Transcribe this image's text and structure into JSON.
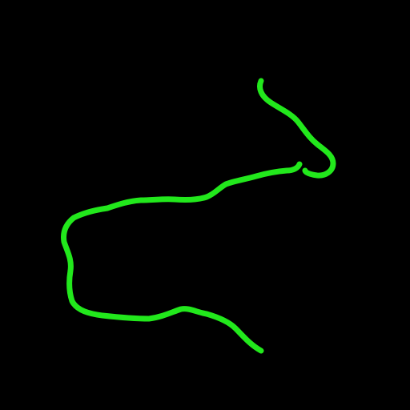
{
  "canvas": {
    "background_color": "#000000"
  },
  "stroke": {
    "color": "#22e81c",
    "shape": "freehand-curve"
  }
}
